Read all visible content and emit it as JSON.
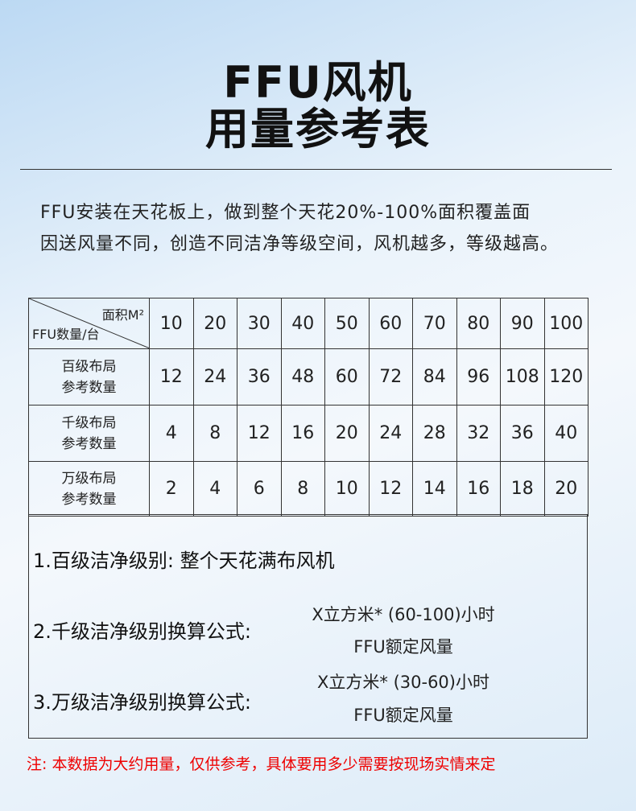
{
  "title": {
    "line1": "FFU风机",
    "line2": "用量参考表"
  },
  "intro": {
    "line1": "FFU安装在天花板上，做到整个天花20%-100%面积覆盖面",
    "line2": "因送风量不同，创造不同洁净等级空间，风机越多，等级越高。"
  },
  "table": {
    "corner_top": "面积M²",
    "corner_bottom": "FFU数量/台",
    "areas": [
      "10",
      "20",
      "30",
      "40",
      "50",
      "60",
      "70",
      "80",
      "90",
      "100"
    ],
    "rows": [
      {
        "label1": "百级布局",
        "label2": "参考数量",
        "values": [
          "12",
          "24",
          "36",
          "48",
          "60",
          "72",
          "84",
          "96",
          "108",
          "120"
        ]
      },
      {
        "label1": "千级布局",
        "label2": "参考数量",
        "values": [
          "4",
          "8",
          "12",
          "16",
          "20",
          "24",
          "28",
          "32",
          "36",
          "40"
        ]
      },
      {
        "label1": "万级布局",
        "label2": "参考数量",
        "values": [
          "2",
          "4",
          "6",
          "8",
          "10",
          "12",
          "14",
          "16",
          "18",
          "20"
        ]
      }
    ]
  },
  "notes": {
    "n1": "1.百级洁净级别: 整个天花满布风机",
    "n2": "2.千级洁净级别换算公式:",
    "n2_num": "X立方米* (60-100)小时",
    "n2_den": "FFU额定风量",
    "n3": "3.万级洁净级别换算公式:",
    "n3_num": "X立方米* (30-60)小时",
    "n3_den": "FFU额定风量"
  },
  "footnote": "注: 本数据为大约用量，仅供参考，具体要用多少需要按现场实情来定",
  "colors": {
    "footnote": "#e00000"
  }
}
